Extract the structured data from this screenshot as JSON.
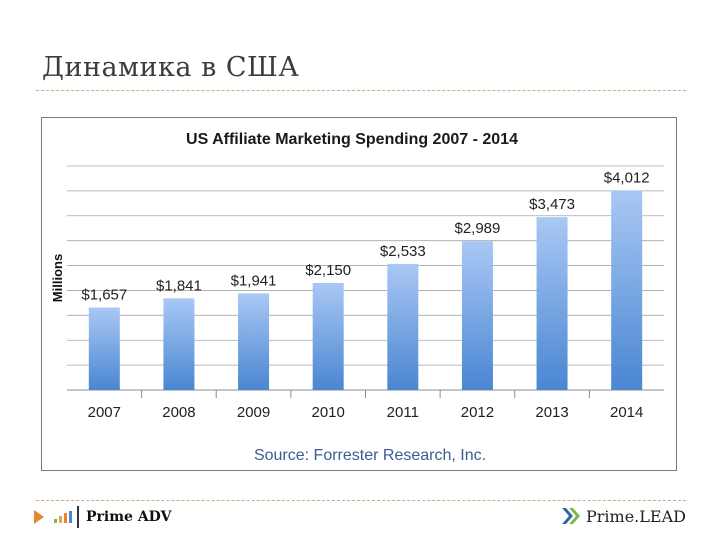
{
  "slide": {
    "title": "Динамика в США",
    "footer_left_logo": "Prime ADV",
    "footer_right_logo": "Prime.LEAD"
  },
  "chart_data": {
    "type": "bar",
    "title": "US Affiliate Marketing Spending 2007 - 2014",
    "ylabel": "Millions",
    "xlabel": "",
    "categories": [
      "2007",
      "2008",
      "2009",
      "2010",
      "2011",
      "2012",
      "2013",
      "2014"
    ],
    "values": [
      1657,
      1841,
      1941,
      2150,
      2533,
      2989,
      3473,
      4012
    ],
    "data_labels": [
      "$1,657",
      "$1,841",
      "$1,941",
      "$2,150",
      "$2,533",
      "$2,989",
      "$3,473",
      "$4,012"
    ],
    "ylim": [
      0,
      4500
    ],
    "grid": true,
    "legend": "none",
    "source": "Source: Forrester Research, Inc.",
    "colors": {
      "bar_top": "#a9c8f4",
      "bar_bottom": "#4a86d2",
      "source_text": "#3d5c91",
      "grid": "#a6a6a6"
    }
  },
  "colors": {
    "accent": "#e2882d",
    "title": "#3c3c3c",
    "primelead": "#2d6aa8"
  }
}
